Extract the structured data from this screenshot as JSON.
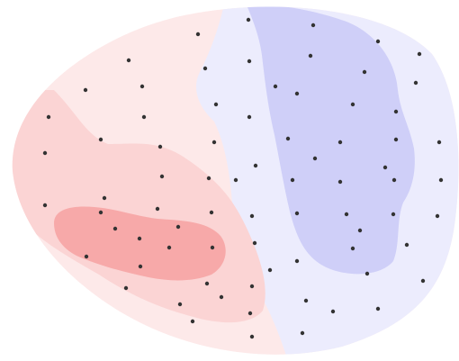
{
  "chart_data": {
    "type": "heatmap",
    "variant": "scalp-topographic-map",
    "title": "",
    "xlabel": "",
    "ylabel": "",
    "legend": "none",
    "colorbar": false,
    "grid": false,
    "colormap": {
      "negative": "#c8c8f7",
      "neutral": "#ffffff",
      "positive": "#f7a0a0"
    },
    "contour_levels": [
      {
        "name": "strong-negative",
        "color": "#cfcff8"
      },
      {
        "name": "weak-negative",
        "color": "#ececfd"
      },
      {
        "name": "weak-positive",
        "color": "#fde9e9"
      },
      {
        "name": "medium-positive",
        "color": "#fbd4d4"
      },
      {
        "name": "strong-positive",
        "color": "#f7a9a9"
      }
    ],
    "sensor_color": "#333333",
    "sensor_count": 76
  }
}
